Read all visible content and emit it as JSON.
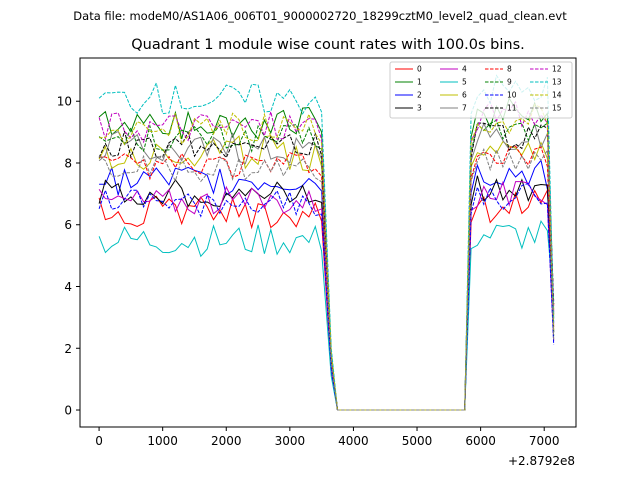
{
  "chart_data": {
    "type": "line",
    "suptitle": "Data file: modeM0/AS1A06_006T01_9000002720_18299cztM0_level2_quad_clean.evt",
    "title": "Quadrant 1 module wise count rates with 100.0s bins.",
    "xlabel": "",
    "ylabel": "",
    "x_offset_label": "+2.8792e8",
    "xlim": [
      -300,
      7500
    ],
    "ylim": [
      -0.55,
      11.4
    ],
    "xticks": [
      0,
      1000,
      2000,
      3000,
      4000,
      5000,
      6000,
      7000
    ],
    "yticks": [
      0,
      2,
      4,
      6,
      8,
      10
    ],
    "legend_loc": "upper-right",
    "series": [
      {
        "name": "0",
        "color": "#ff0000",
        "dash": "solid",
        "level": 6.4,
        "amp": 0.35
      },
      {
        "name": "1",
        "color": "#008000",
        "dash": "solid",
        "level": 9.3,
        "amp": 0.35
      },
      {
        "name": "2",
        "color": "#0000ff",
        "dash": "solid",
        "level": 7.4,
        "amp": 0.35
      },
      {
        "name": "3",
        "color": "#000000",
        "dash": "solid",
        "level": 7.0,
        "amp": 0.3
      },
      {
        "name": "4",
        "color": "#c000c0",
        "dash": "solid",
        "level": 6.8,
        "amp": 0.3
      },
      {
        "name": "5",
        "color": "#00bfbf",
        "dash": "solid",
        "level": 5.5,
        "amp": 0.35
      },
      {
        "name": "6",
        "color": "#bfbf00",
        "dash": "solid",
        "level": 8.3,
        "amp": 0.4
      },
      {
        "name": "7",
        "color": "#808080",
        "dash": "solid",
        "level": 8.5,
        "amp": 0.35
      },
      {
        "name": "8",
        "color": "#ff0000",
        "dash": "dashed",
        "level": 7.9,
        "amp": 0.3
      },
      {
        "name": "9",
        "color": "#008000",
        "dash": "dashed",
        "level": 8.8,
        "amp": 0.3
      },
      {
        "name": "10",
        "color": "#0000ff",
        "dash": "dashed",
        "level": 6.7,
        "amp": 0.3
      },
      {
        "name": "11",
        "color": "#000000",
        "dash": "dashed",
        "level": 8.6,
        "amp": 0.3
      },
      {
        "name": "12",
        "color": "#c000c0",
        "dash": "dashed",
        "level": 9.2,
        "amp": 0.35
      },
      {
        "name": "13",
        "color": "#00bfbf",
        "dash": "dashed",
        "level": 10.1,
        "amp": 0.35
      },
      {
        "name": "14",
        "color": "#bfbf00",
        "dash": "dashed",
        "level": 9.1,
        "amp": 0.35
      },
      {
        "name": "15",
        "color": "#808080",
        "dash": "dashed",
        "level": 7.8,
        "amp": 0.3
      }
    ]
  }
}
